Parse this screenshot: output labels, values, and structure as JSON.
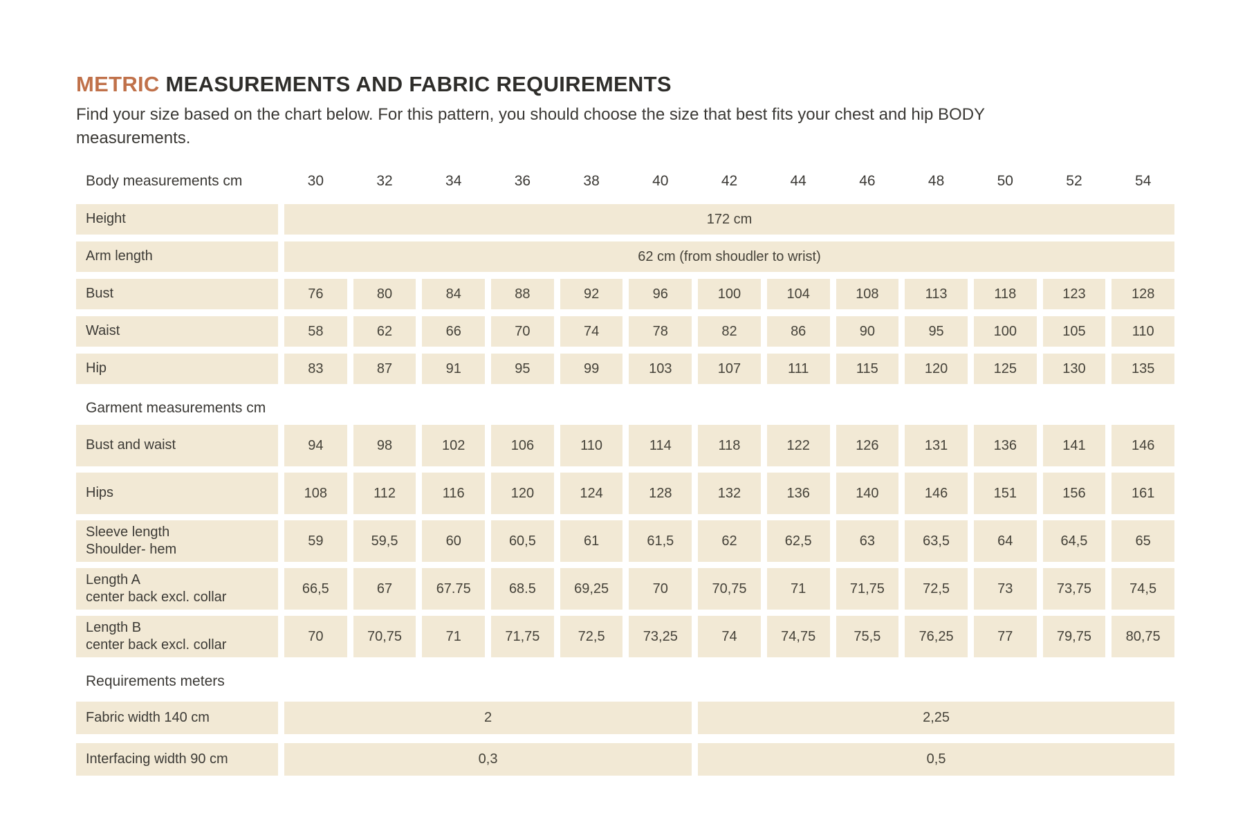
{
  "title": {
    "highlight": "METRIC",
    "rest": " MEASUREMENTS AND FABRIC REQUIREMENTS"
  },
  "subtitle_line1": "Find your size based on the chart below. For this pattern, you should choose the size that best fits your chest and hip BODY",
  "subtitle_line2": "measurements.",
  "colors": {
    "accent": "#c0714a",
    "row_bg": "#f2e9d5",
    "text": "#3c3a35"
  },
  "table": {
    "header_label": "Body measurements cm",
    "sizes": [
      "30",
      "32",
      "34",
      "36",
      "38",
      "40",
      "42",
      "44",
      "46",
      "48",
      "50",
      "52",
      "54"
    ],
    "body_rows": [
      {
        "label": "Height",
        "span": "172 cm"
      },
      {
        "label": "Arm length",
        "span": "62 cm (from shoudler to wrist)"
      },
      {
        "label": "Bust",
        "values": [
          "76",
          "80",
          "84",
          "88",
          "92",
          "96",
          "100",
          "104",
          "108",
          "113",
          "118",
          "123",
          "128"
        ]
      },
      {
        "label": "Waist",
        "values": [
          "58",
          "62",
          "66",
          "70",
          "74",
          "78",
          "82",
          "86",
          "90",
          "95",
          "100",
          "105",
          "110"
        ]
      },
      {
        "label": "Hip",
        "values": [
          "83",
          "87",
          "91",
          "95",
          "99",
          "103",
          "107",
          "111",
          "115",
          "120",
          "125",
          "130",
          "135"
        ]
      }
    ],
    "garment_section_label": "Garment measurements cm",
    "garment_rows": [
      {
        "label": "Bust and waist",
        "values": [
          "94",
          "98",
          "102",
          "106",
          "110",
          "114",
          "118",
          "122",
          "126",
          "131",
          "136",
          "141",
          "146"
        ]
      },
      {
        "label": "Hips",
        "values": [
          "108",
          "112",
          "116",
          "120",
          "124",
          "128",
          "132",
          "136",
          "140",
          "146",
          "151",
          "156",
          "161"
        ]
      },
      {
        "label": "Sleeve length",
        "label2": "Shoulder- hem",
        "values": [
          "59",
          "59,5",
          "60",
          "60,5",
          "61",
          "61,5",
          "62",
          "62,5",
          "63",
          "63,5",
          "64",
          "64,5",
          "65"
        ]
      },
      {
        "label": "Length A",
        "label2": "center back excl. collar",
        "values": [
          "66,5",
          "67",
          "67.75",
          "68.5",
          "69,25",
          "70",
          "70,75",
          "71",
          "71,75",
          "72,5",
          "73",
          "73,75",
          "74,5"
        ]
      },
      {
        "label": "Length B",
        "label2": "center back excl. collar",
        "values": [
          "70",
          "70,75",
          "71",
          "71,75",
          "72,5",
          "73,25",
          "74",
          "74,75",
          "75,5",
          "76,25",
          "77",
          "79,75",
          "80,75"
        ]
      }
    ],
    "requirements_section_label": "Requirements meters",
    "requirement_rows": [
      {
        "label": "Fabric width 140 cm",
        "left": "2",
        "right": "2,25"
      },
      {
        "label": "Interfacing width 90 cm",
        "left": "0,3",
        "right": "0,5"
      }
    ]
  }
}
